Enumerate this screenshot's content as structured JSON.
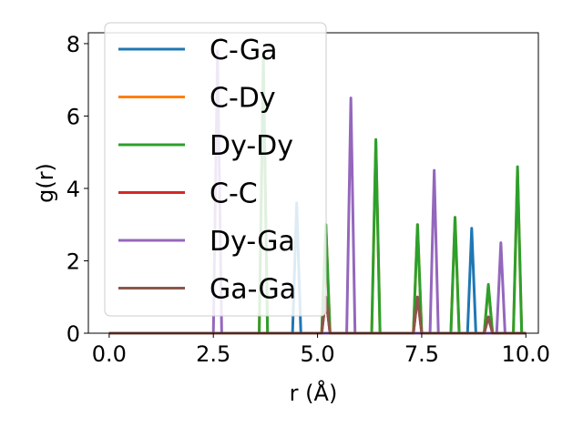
{
  "chart_data": {
    "type": "line",
    "xlabel": "r (Å)",
    "ylabel": "g(r)",
    "xlim": [
      -0.5,
      10.3
    ],
    "ylim": [
      0,
      8.3
    ],
    "xticks": [
      0.0,
      2.5,
      5.0,
      7.5,
      10.0
    ],
    "xtick_labels": [
      "0.0",
      "2.5",
      "5.0",
      "7.5",
      "10.0"
    ],
    "yticks": [
      0,
      2,
      4,
      6,
      8
    ],
    "ytick_labels": [
      "0",
      "2",
      "4",
      "6",
      "8"
    ],
    "grid": false,
    "legend_position": "upper-left",
    "peak_half_width": 0.1,
    "series": [
      {
        "name": "C-Ga",
        "color": "#1f77b4",
        "peaks": [
          [
            4.5,
            3.6
          ],
          [
            8.7,
            2.9
          ]
        ]
      },
      {
        "name": "C-Dy",
        "color": "#ff7f0e",
        "peaks": [
          [
            3.7,
            7.5
          ],
          [
            5.2,
            3.0
          ],
          [
            6.4,
            5.3
          ],
          [
            7.4,
            3.0
          ],
          [
            8.3,
            3.2
          ],
          [
            9.1,
            1.3
          ],
          [
            9.8,
            4.5
          ]
        ]
      },
      {
        "name": "Dy-Dy",
        "color": "#2ca02c",
        "peaks": [
          [
            3.7,
            7.6
          ],
          [
            5.2,
            3.0
          ],
          [
            6.4,
            5.35
          ],
          [
            7.4,
            3.0
          ],
          [
            8.3,
            3.2
          ],
          [
            9.1,
            1.35
          ],
          [
            9.8,
            4.6
          ]
        ]
      },
      {
        "name": "C-C",
        "color": "#d62728",
        "peaks": [
          [
            5.2,
            1.0
          ],
          [
            7.4,
            1.0
          ],
          [
            9.1,
            0.45
          ]
        ]
      },
      {
        "name": "Dy-Ga",
        "color": "#9467bd",
        "peaks": [
          [
            2.6,
            7.8
          ],
          [
            5.8,
            6.5
          ],
          [
            7.8,
            4.5
          ],
          [
            9.4,
            2.5
          ]
        ]
      },
      {
        "name": "Ga-Ga",
        "color": "#8c564b",
        "peaks": [
          [
            5.2,
            1.0
          ],
          [
            7.4,
            1.0
          ],
          [
            9.1,
            0.45
          ]
        ]
      }
    ]
  }
}
